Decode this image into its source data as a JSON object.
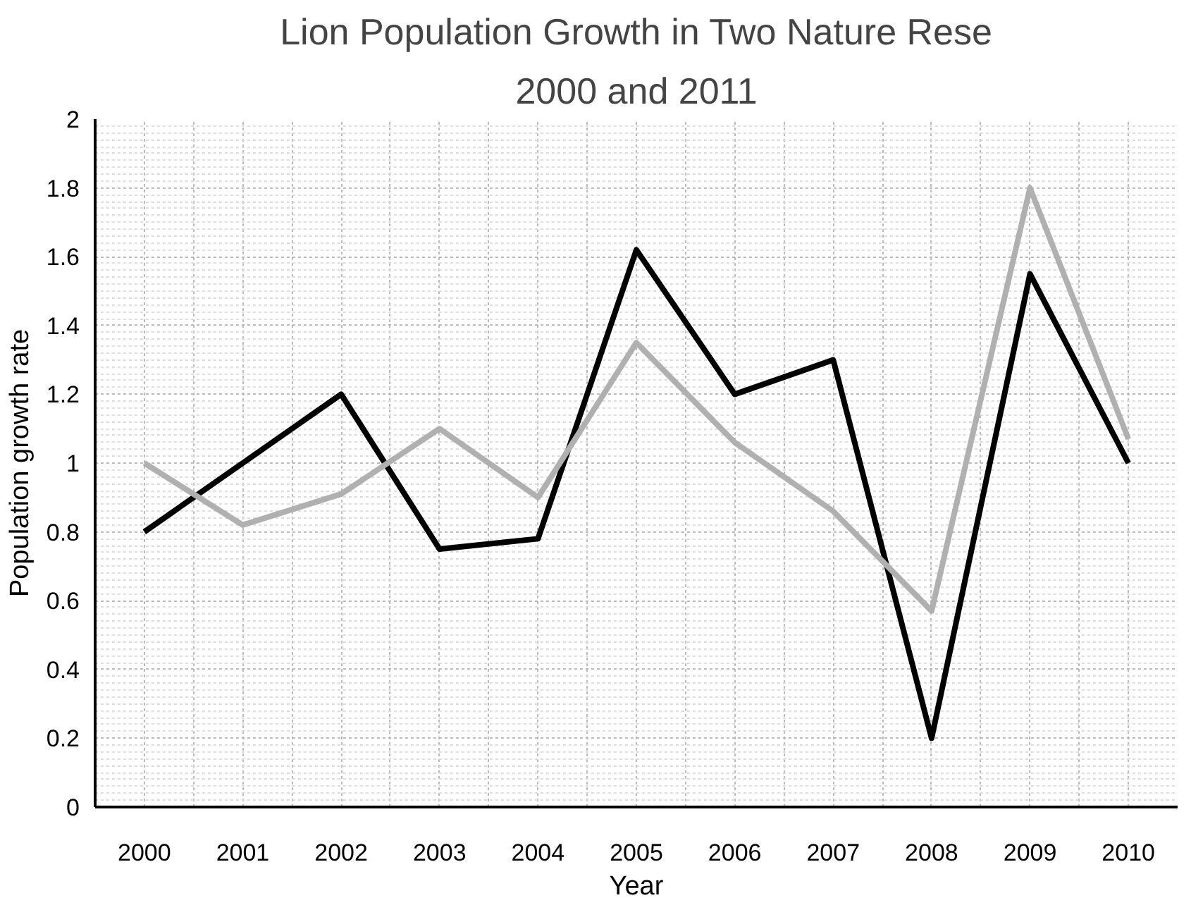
{
  "chart_data": {
    "type": "line",
    "title": "Lion Population Growth in Two Nature Rese",
    "subtitle": "2000 and 2011",
    "xlabel": "Year",
    "ylabel": "Population growth rate",
    "categories": [
      "2000",
      "2001",
      "2002",
      "2003",
      "2004",
      "2005",
      "2006",
      "2007",
      "2008",
      "2009",
      "2010"
    ],
    "series": [
      {
        "color": "#000000",
        "values": [
          0.8,
          1.0,
          1.2,
          0.75,
          0.78,
          1.62,
          1.2,
          1.3,
          0.2,
          1.55,
          1.0
        ]
      },
      {
        "color": "#b0b0b0",
        "values": [
          1.0,
          0.82,
          0.91,
          1.1,
          0.9,
          1.35,
          1.06,
          0.86,
          0.57,
          1.8,
          1.07
        ]
      }
    ],
    "ylim": [
      0,
      2
    ],
    "yticks": [
      0,
      0.2,
      0.4,
      0.6,
      0.8,
      1,
      1.2,
      1.4,
      1.6,
      1.8,
      2
    ],
    "grid": true,
    "marker": "none",
    "line_style": "solid"
  }
}
